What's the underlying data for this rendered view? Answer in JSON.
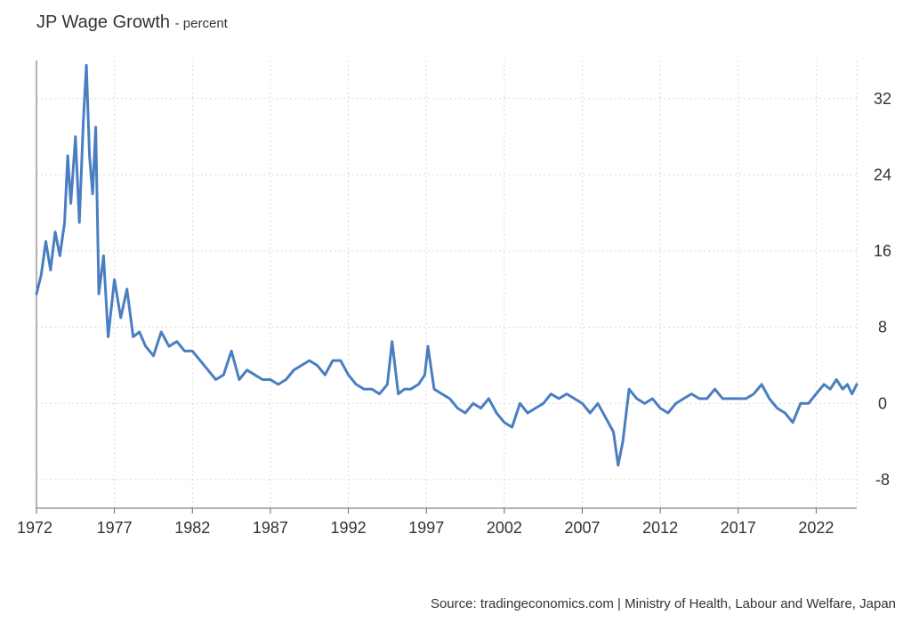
{
  "chart_data": {
    "type": "line",
    "title": "JP Wage Growth",
    "subtitle": "percent",
    "xlabel": "",
    "ylabel": "",
    "xlim": [
      1972,
      2024.6
    ],
    "ylim": [
      -11,
      36
    ],
    "x_ticks": [
      1972,
      1977,
      1982,
      1987,
      1992,
      1997,
      2002,
      2007,
      2012,
      2017,
      2022
    ],
    "x_tick_labels": [
      "1972",
      "1977",
      "1982",
      "1987",
      "1992",
      "1997",
      "2002",
      "2007",
      "2012",
      "2017",
      "2022"
    ],
    "y_ticks": [
      -8,
      0,
      8,
      16,
      24,
      32
    ],
    "y_tick_labels": [
      "-8",
      "0",
      "8",
      "16",
      "24",
      "32"
    ],
    "grid": true,
    "series": [
      {
        "name": "JP Wage Growth",
        "color": "#4a7ec1",
        "x": [
          1972.0,
          1972.3,
          1972.6,
          1972.9,
          1973.2,
          1973.5,
          1973.8,
          1974.0,
          1974.2,
          1974.5,
          1974.75,
          1975.0,
          1975.2,
          1975.4,
          1975.6,
          1975.8,
          1976.0,
          1976.3,
          1976.6,
          1977.0,
          1977.4,
          1977.8,
          1978.2,
          1978.6,
          1979.0,
          1979.5,
          1980.0,
          1980.5,
          1981.0,
          1981.5,
          1982.0,
          1982.5,
          1983.0,
          1983.5,
          1984.0,
          1984.5,
          1985.0,
          1985.5,
          1986.0,
          1986.5,
          1987.0,
          1987.5,
          1988.0,
          1988.5,
          1989.0,
          1989.5,
          1990.0,
          1990.5,
          1991.0,
          1991.5,
          1992.0,
          1992.5,
          1993.0,
          1993.5,
          1994.0,
          1994.5,
          1994.8,
          1995.2,
          1995.6,
          1996.0,
          1996.5,
          1996.9,
          1997.1,
          1997.5,
          1998.0,
          1998.5,
          1999.0,
          1999.5,
          2000.0,
          2000.5,
          2001.0,
          2001.5,
          2002.0,
          2002.5,
          2003.0,
          2003.5,
          2004.0,
          2004.5,
          2005.0,
          2005.5,
          2006.0,
          2006.5,
          2007.0,
          2007.5,
          2008.0,
          2008.5,
          2009.0,
          2009.3,
          2009.6,
          2010.0,
          2010.5,
          2011.0,
          2011.5,
          2012.0,
          2012.5,
          2013.0,
          2013.5,
          2014.0,
          2014.5,
          2015.0,
          2015.5,
          2016.0,
          2016.5,
          2017.0,
          2017.5,
          2018.0,
          2018.5,
          2019.0,
          2019.5,
          2020.0,
          2020.5,
          2021.0,
          2021.5,
          2022.0,
          2022.5,
          2022.9,
          2023.3,
          2023.7,
          2024.0,
          2024.3,
          2024.6
        ],
        "values": [
          11.5,
          13.5,
          17.0,
          14.0,
          18.0,
          15.5,
          19.0,
          26.0,
          21.0,
          28.0,
          19.0,
          29.5,
          35.5,
          26.0,
          22.0,
          29.0,
          11.5,
          15.5,
          7.0,
          13.0,
          9.0,
          12.0,
          7.0,
          7.5,
          6.0,
          5.0,
          7.5,
          6.0,
          6.5,
          5.5,
          5.5,
          4.5,
          3.5,
          2.5,
          3.0,
          5.5,
          2.5,
          3.5,
          3.0,
          2.5,
          2.5,
          2.0,
          2.5,
          3.5,
          4.0,
          4.5,
          4.0,
          3.0,
          4.5,
          4.5,
          3.0,
          2.0,
          1.5,
          1.5,
          1.0,
          2.0,
          6.5,
          1.0,
          1.5,
          1.5,
          2.0,
          3.0,
          6.0,
          1.5,
          1.0,
          0.5,
          -0.5,
          -1.0,
          0.0,
          -0.5,
          0.5,
          -1.0,
          -2.0,
          -2.5,
          0.0,
          -1.0,
          -0.5,
          0.0,
          1.0,
          0.5,
          1.0,
          0.5,
          0.0,
          -1.0,
          0.0,
          -1.5,
          -3.0,
          -6.5,
          -4.0,
          1.5,
          0.5,
          0.0,
          0.5,
          -0.5,
          -1.0,
          0.0,
          0.5,
          1.0,
          0.5,
          0.5,
          1.5,
          0.5,
          0.5,
          0.5,
          0.5,
          1.0,
          2.0,
          0.5,
          -0.5,
          -1.0,
          -2.0,
          0.0,
          0.0,
          1.0,
          2.0,
          1.5,
          2.5,
          1.5,
          2.0,
          1.0,
          2.0
        ]
      }
    ],
    "source": "Source: tradingeconomics.com | Ministry of Health, Labour and Welfare, Japan"
  }
}
